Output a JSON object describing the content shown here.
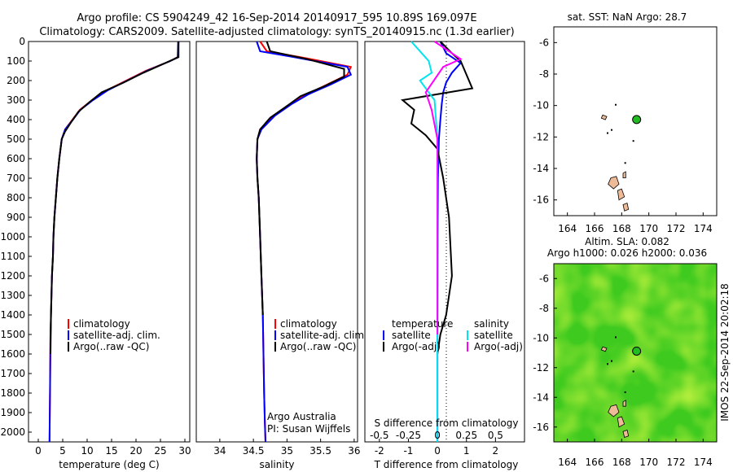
{
  "header": {
    "line1": "Argo profile: CS 5904249_42 16-Sep-2014 20140917_595 10.89S 169.097E",
    "line2": "Climatology: CARS2009. Satellite-adjusted climatology: synTS_20140915.nc (1.3d earlier)"
  },
  "colors": {
    "climatology": "#ff0000",
    "satellite": "#0000ff",
    "argo": "#000000",
    "sal_satellite": "#00e5ee",
    "sal_argo": "#ff00ff",
    "land": "#eebb99",
    "float_marker": "#22bb22"
  },
  "depth_axis": {
    "ylim": [
      0,
      2050
    ],
    "ticks": [
      "0",
      "100",
      "200",
      "300",
      "400",
      "500",
      "600",
      "700",
      "800",
      "900",
      "1000",
      "1100",
      "1200",
      "1300",
      "1400",
      "1500",
      "1600",
      "1700",
      "1800",
      "1900",
      "2000"
    ]
  },
  "panels": {
    "temperature": {
      "xlabel": "temperature (deg C)",
      "xticks": [
        "0",
        "5",
        "10",
        "15",
        "20",
        "25",
        "30"
      ],
      "legend": [
        "climatology",
        "satellite-adj. clim.",
        "Argo(..raw -QC)"
      ]
    },
    "salinity": {
      "xlabel": "salinity",
      "xticks": [
        "34",
        "34.5",
        "35",
        "35.5",
        "36"
      ],
      "legend": [
        "climatology",
        "satellite-adj. clim.",
        "Argo(..raw -QC)"
      ],
      "credit1": "Argo Australia",
      "credit2": "PI: Susan Wijffels"
    },
    "difference": {
      "xlabel": "T difference from climatology",
      "top_label": "S difference from climatology",
      "top_ticks": [
        "-0.5",
        "-0.25",
        "0",
        "0.25",
        "0.5"
      ],
      "xticks": [
        "-2",
        "-1",
        "0",
        "1",
        "2"
      ],
      "legend_t_title": "temperature",
      "legend_t": [
        "satellite",
        "Argo(-adj)"
      ],
      "legend_s_title": "salinity",
      "legend_s": [
        "satellite",
        "Argo(-adj)"
      ]
    }
  },
  "maps": {
    "sst_title": "sat. SST: NaN Argo: 28.7",
    "sla_title1": "Altim. SLA: 0.082",
    "sla_title2": "Argo h1000: 0.026 h2000: 0.036",
    "yticks": [
      "-6",
      "-8",
      "-10",
      "-12",
      "-14",
      "-16"
    ],
    "xticks": [
      "164",
      "166",
      "168",
      "170",
      "172",
      "174"
    ],
    "float_lon": 169.1,
    "float_lat": -10.89,
    "side_label": "IMOS 22-Sep-2014 20:02:18"
  },
  "chart_data": [
    {
      "type": "line",
      "title": "",
      "xlabel": "temperature (deg C)",
      "ylabel": "",
      "xlim": [
        -2,
        31
      ],
      "ylim": [
        2050,
        0
      ],
      "series": [
        {
          "name": "climatology",
          "x": [
            28.6,
            28.5,
            27,
            22,
            18,
            14,
            11,
            8.5,
            7,
            5.5,
            4.8,
            4.3,
            3.9,
            3.6,
            3.3,
            3.1,
            3.0,
            2.8,
            2.7,
            2.6,
            2.5,
            2.4,
            2.3
          ],
          "y": [
            0,
            80,
            100,
            150,
            200,
            250,
            300,
            350,
            400,
            450,
            500,
            600,
            700,
            800,
            900,
            1000,
            1100,
            1200,
            1300,
            1400,
            1500,
            1800,
            2050
          ]
        },
        {
          "name": "satellite-adj. clim.",
          "x": [
            28.7,
            28.6,
            27,
            22.2,
            18.2,
            14.2,
            11.2,
            8.6,
            7.1,
            5.5,
            4.8,
            4.3,
            3.9,
            3.6,
            3.3,
            3.1,
            3.0,
            2.8,
            2.7,
            2.6,
            2.5,
            2.4,
            2.3
          ],
          "y": [
            0,
            80,
            100,
            150,
            200,
            250,
            300,
            350,
            400,
            450,
            500,
            600,
            700,
            800,
            900,
            1000,
            1100,
            1200,
            1300,
            1400,
            1500,
            1800,
            2050
          ]
        },
        {
          "name": "Argo(..raw -QC)",
          "x": [
            28.7,
            28.7,
            26,
            21.5,
            17.5,
            13,
            10.5,
            8.2,
            6.8,
            5.5,
            4.8,
            4.3,
            3.9,
            3.6,
            3.3,
            3.1,
            3.0,
            2.8,
            2.7,
            2.6,
            2.5
          ],
          "y": [
            0,
            80,
            110,
            160,
            210,
            260,
            310,
            360,
            410,
            460,
            500,
            600,
            700,
            800,
            900,
            1000,
            1100,
            1200,
            1300,
            1400,
            1600
          ]
        }
      ]
    },
    {
      "type": "line",
      "title": "",
      "xlabel": "salinity",
      "ylabel": "",
      "xlim": [
        33.65,
        36.05
      ],
      "ylim": [
        2050,
        0
      ],
      "series": [
        {
          "name": "climatology",
          "x": [
            34.6,
            34.7,
            35.2,
            35.95,
            35.9,
            35.6,
            35.3,
            35.05,
            34.8,
            34.6,
            34.56,
            34.55,
            34.56,
            34.58,
            34.6,
            34.62,
            34.64,
            34.65,
            34.66,
            34.67,
            34.68
          ],
          "y": [
            0,
            50,
            80,
            130,
            170,
            220,
            270,
            320,
            380,
            450,
            500,
            600,
            700,
            800,
            1000,
            1200,
            1400,
            1600,
            1800,
            1950,
            2050
          ]
        },
        {
          "name": "satellite-adj. clim.",
          "x": [
            34.55,
            34.6,
            35.1,
            35.9,
            35.95,
            35.65,
            35.32,
            35.07,
            34.82,
            34.62,
            34.56,
            34.55,
            34.56,
            34.58,
            34.6,
            34.62,
            34.64,
            34.65,
            34.66,
            34.67,
            34.68
          ],
          "y": [
            0,
            50,
            80,
            130,
            170,
            220,
            270,
            320,
            380,
            450,
            500,
            600,
            700,
            800,
            1000,
            1200,
            1400,
            1600,
            1800,
            1950,
            2050
          ]
        },
        {
          "name": "Argo(..raw -QC)",
          "x": [
            34.7,
            34.75,
            35.3,
            35.85,
            35.85,
            35.55,
            35.2,
            35.0,
            34.75,
            34.6,
            34.56,
            34.55,
            34.56,
            34.58,
            34.6,
            34.62,
            34.64
          ],
          "y": [
            0,
            50,
            90,
            140,
            180,
            230,
            280,
            330,
            390,
            450,
            500,
            600,
            700,
            800,
            1000,
            1200,
            1400
          ]
        }
      ]
    },
    {
      "type": "line",
      "title": "",
      "xlabel": "T difference from climatology",
      "ylabel": "",
      "xlim": [
        -2.5,
        3
      ],
      "ylim": [
        2050,
        0
      ],
      "series": [
        {
          "name": "temperature satellite",
          "x": [
            0.1,
            0.3,
            0.8,
            0.5,
            0.3,
            0.2,
            0.15,
            0.1,
            0.05,
            0.02,
            0.01,
            0.0,
            0.0
          ],
          "y": [
            0,
            60,
            110,
            160,
            210,
            260,
            320,
            400,
            500,
            700,
            1000,
            1500,
            2050
          ]
        },
        {
          "name": "temperature Argo(-adj)",
          "x": [
            0.1,
            0.5,
            0.8,
            1.2,
            0.4,
            -1.2,
            -0.8,
            -0.9,
            -0.4,
            0.0,
            0.2,
            0.4,
            0.5,
            0.3,
            0.1,
            0.0
          ],
          "y": [
            0,
            60,
            100,
            240,
            260,
            300,
            350,
            420,
            480,
            550,
            700,
            900,
            1200,
            1400,
            1500,
            1600
          ]
        },
        {
          "name": "salinity satellite",
          "x": [
            -0.9,
            -0.3,
            -0.2,
            -0.6,
            -0.1,
            0.0,
            0.0
          ],
          "y": [
            0,
            100,
            160,
            200,
            300,
            500,
            2050
          ]
        },
        {
          "name": "salinity Argo(-adj)",
          "x": [
            -0.1,
            0.5,
            0.8,
            0.2,
            -0.4,
            -0.2,
            0.0,
            0.0
          ],
          "y": [
            0,
            60,
            90,
            130,
            260,
            350,
            500,
            1500
          ]
        }
      ]
    }
  ]
}
